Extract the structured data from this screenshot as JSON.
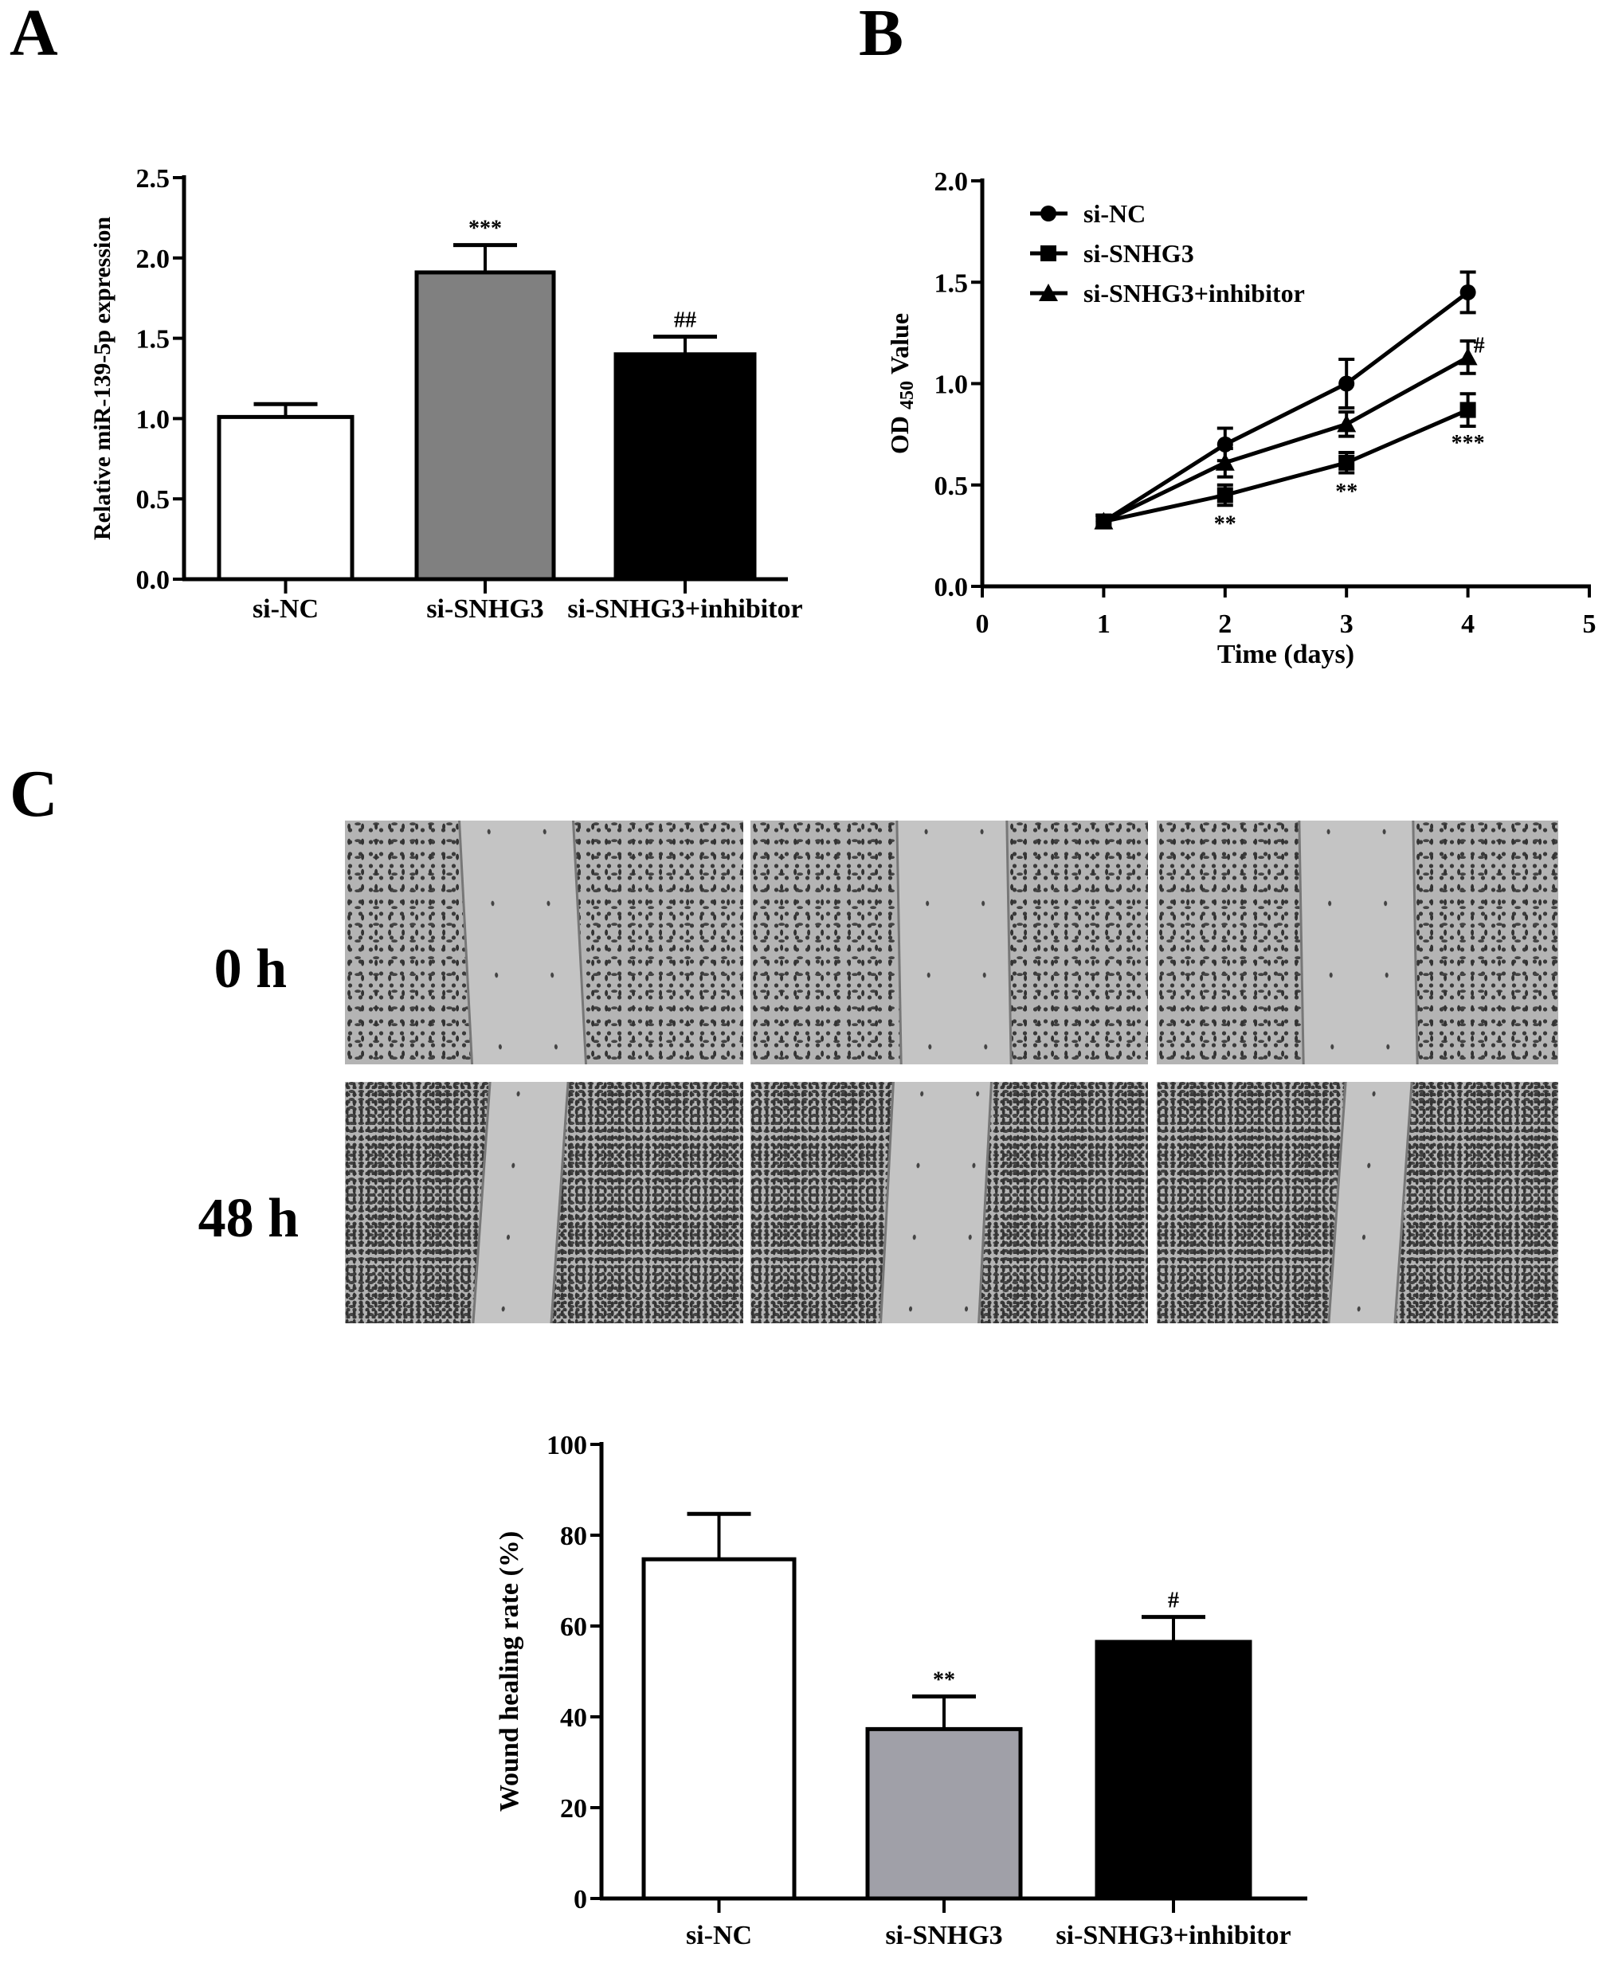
{
  "panels": {
    "a": "A",
    "b": "B",
    "c": "C"
  },
  "time_labels": [
    "0 h",
    "48 h"
  ],
  "colors": {
    "white_bar": "#ffffff",
    "gray_bar_a": "#808080",
    "gray_bar_c": "#a0a0a8",
    "black_bar": "#000000"
  },
  "chart_data": [
    {
      "id": "A",
      "type": "bar",
      "title": "",
      "xlabel": "",
      "ylabel": "Relative miR-139-5p expression",
      "ylim": [
        0,
        2.5
      ],
      "yticks": [
        "0.0",
        "0.5",
        "1.0",
        "1.5",
        "2.0",
        "2.5"
      ],
      "ytick_values": [
        0,
        0.5,
        1.0,
        1.5,
        2.0,
        2.5
      ],
      "categories": [
        "si-NC",
        "si-SNHG3",
        "si-SNHG3+inhibitor"
      ],
      "values": [
        1.01,
        1.91,
        1.4
      ],
      "errors": [
        0.08,
        0.17,
        0.11
      ],
      "annotations": [
        "",
        "***",
        "##"
      ],
      "fills": [
        "#ffffff",
        "#808080",
        "#000000"
      ]
    },
    {
      "id": "B",
      "type": "line",
      "title": "",
      "xlabel": "Time (days)",
      "ylabel_main": "OD",
      "ylabel_sub": "450",
      "ylabel_tail": "Value",
      "xlim": [
        0,
        5
      ],
      "ylim": [
        0,
        2.0
      ],
      "xticks": [
        "0",
        "1",
        "2",
        "3",
        "4",
        "5"
      ],
      "xtick_values": [
        0,
        1,
        2,
        3,
        4,
        5
      ],
      "yticks": [
        "0.0",
        "0.5",
        "1.0",
        "1.5",
        "2.0"
      ],
      "ytick_values": [
        0,
        0.5,
        1.0,
        1.5,
        2.0
      ],
      "x": [
        1,
        2,
        3,
        4
      ],
      "legend_position": "top-left",
      "series": [
        {
          "name": "si-NC",
          "marker": "circle",
          "values": [
            0.32,
            0.7,
            1.0,
            1.45
          ],
          "errors": [
            0.03,
            0.08,
            0.12,
            0.1
          ]
        },
        {
          "name": "si-SNHG3",
          "marker": "square",
          "values": [
            0.32,
            0.45,
            0.61,
            0.87
          ],
          "errors": [
            0.03,
            0.05,
            0.05,
            0.08
          ]
        },
        {
          "name": "si-SNHG3+inhibitor",
          "marker": "triangle",
          "values": [
            0.32,
            0.61,
            0.8,
            1.13
          ],
          "errors": [
            0.03,
            0.07,
            0.06,
            0.08
          ]
        }
      ],
      "annotations": [
        {
          "x": 2,
          "y": 0.32,
          "text": "**"
        },
        {
          "x": 3,
          "y": 0.48,
          "text": "**"
        },
        {
          "x": 4,
          "y": 0.72,
          "text": "***"
        },
        {
          "x": 4,
          "y": 1.2,
          "text": "#"
        }
      ]
    },
    {
      "id": "C",
      "type": "bar",
      "title": "",
      "xlabel": "",
      "ylabel": "Wound healing rate (%)",
      "ylim": [
        0,
        100
      ],
      "yticks": [
        "0",
        "20",
        "40",
        "60",
        "80",
        "100"
      ],
      "ytick_values": [
        0,
        20,
        40,
        60,
        80,
        100
      ],
      "categories": [
        "si-NC",
        "si-SNHG3",
        "si-SNHG3+inhibitor"
      ],
      "values": [
        74.7,
        37.3,
        56.5
      ],
      "errors": [
        10.0,
        7.2,
        5.5
      ],
      "annotations": [
        "",
        "**",
        "#"
      ],
      "fills": [
        "#ffffff",
        "#a0a0a8",
        "#000000"
      ]
    }
  ]
}
